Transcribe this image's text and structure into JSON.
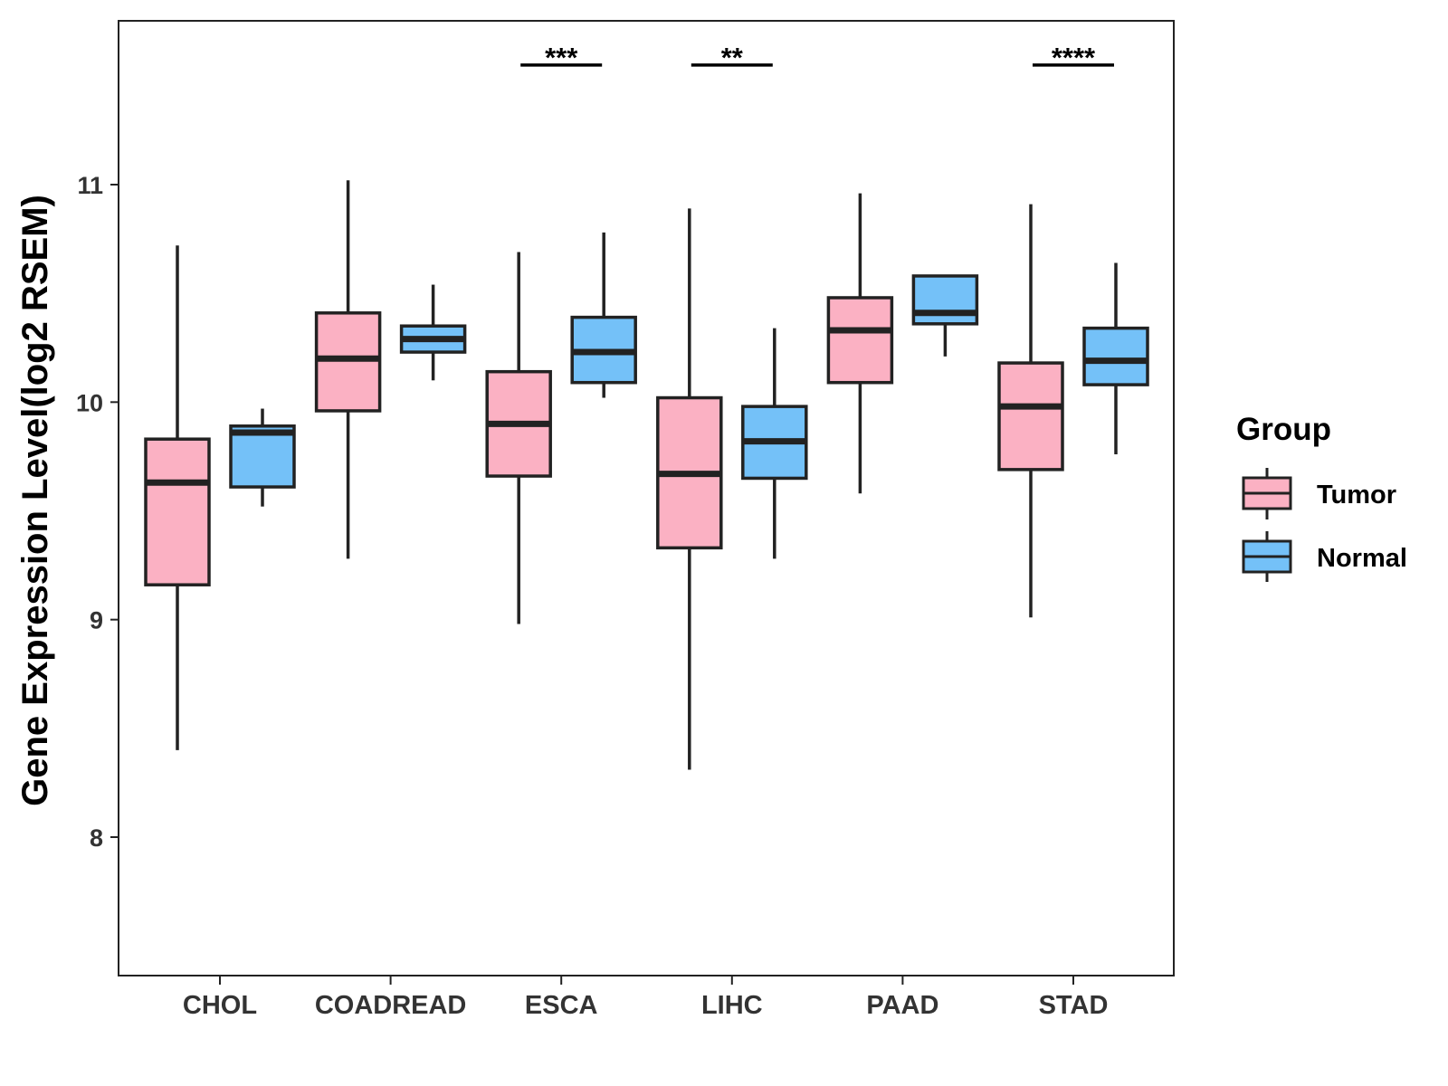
{
  "chart_data": {
    "type": "boxplot",
    "title": "",
    "xlabel": "",
    "ylabel": "Gene Expression Level(log2 RSEM)",
    "ylim": [
      7.4,
      11.76
    ],
    "yticks": [
      8,
      9,
      10,
      11
    ],
    "grid": false,
    "legend": {
      "title": "Group",
      "placement": "right",
      "entries": [
        "Tumor",
        "Normal"
      ]
    },
    "colors": {
      "Tumor": "#FBB1C3",
      "Normal": "#74C1F8",
      "outline": "#222222"
    },
    "categories": [
      "CHOL",
      "COADREAD",
      "ESCA",
      "LIHC",
      "PAAD",
      "STAD"
    ],
    "series": [
      {
        "name": "Tumor",
        "boxes": [
          {
            "min": 8.4,
            "q1": 9.16,
            "median": 9.63,
            "q3": 9.83,
            "max": 10.72
          },
          {
            "min": 9.28,
            "q1": 9.96,
            "median": 10.2,
            "q3": 10.41,
            "max": 11.02
          },
          {
            "min": 8.98,
            "q1": 9.66,
            "median": 9.9,
            "q3": 10.14,
            "max": 10.69
          },
          {
            "min": 8.31,
            "q1": 9.33,
            "median": 9.67,
            "q3": 10.02,
            "max": 10.89
          },
          {
            "min": 9.58,
            "q1": 10.09,
            "median": 10.33,
            "q3": 10.48,
            "max": 10.96
          },
          {
            "min": 9.01,
            "q1": 9.69,
            "median": 9.98,
            "q3": 10.18,
            "max": 10.91
          }
        ]
      },
      {
        "name": "Normal",
        "boxes": [
          {
            "min": 9.52,
            "q1": 9.61,
            "median": 9.86,
            "q3": 9.89,
            "max": 9.97
          },
          {
            "min": 10.1,
            "q1": 10.23,
            "median": 10.29,
            "q3": 10.35,
            "max": 10.54
          },
          {
            "min": 10.02,
            "q1": 10.09,
            "median": 10.23,
            "q3": 10.39,
            "max": 10.78
          },
          {
            "min": 9.28,
            "q1": 9.65,
            "median": 9.82,
            "q3": 9.98,
            "max": 10.34
          },
          {
            "min": 10.21,
            "q1": 10.36,
            "median": 10.41,
            "q3": 10.58,
            "max": 10.58
          },
          {
            "min": 9.76,
            "q1": 10.08,
            "median": 10.19,
            "q3": 10.34,
            "max": 10.64
          }
        ]
      }
    ],
    "annotations": [
      {
        "category": "ESCA",
        "label": "***",
        "y": 11.55
      },
      {
        "category": "LIHC",
        "label": "**",
        "y": 11.55
      },
      {
        "category": "STAD",
        "label": "****",
        "y": 11.55
      }
    ]
  }
}
